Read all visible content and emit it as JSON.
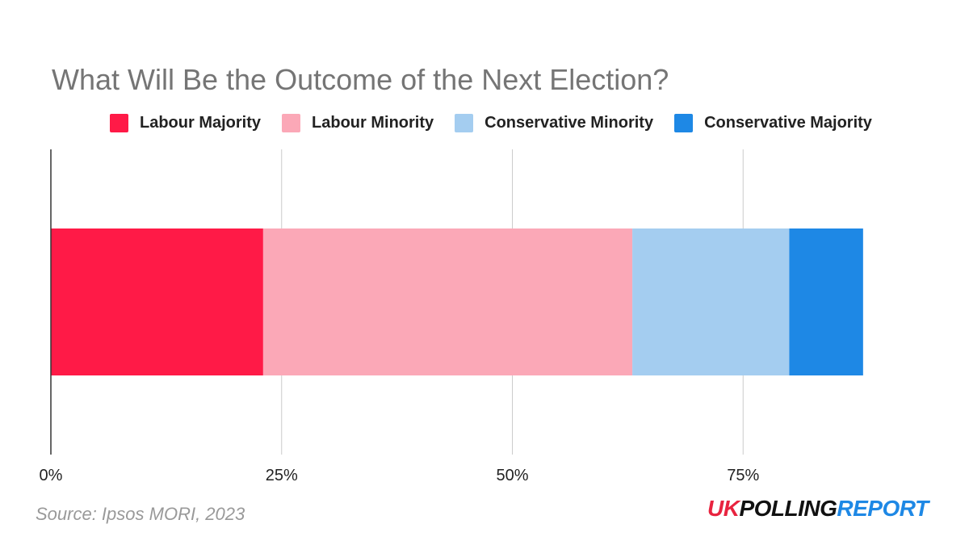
{
  "title": "What Will Be the Outcome of the Next Election?",
  "source": "Source: Ipsos MORI, 2023",
  "logo": {
    "part1": "UK",
    "part2": "POLLING",
    "part3": "REPORT"
  },
  "colors": {
    "labour_majority": "#ff1a47",
    "labour_minority": "#fba8b7",
    "conservative_minority": "#a4cdf0",
    "conservative_majority": "#1e88e5",
    "logo_red": "#e8233f",
    "logo_dark": "#111111",
    "logo_blue": "#1e88e5"
  },
  "chart_data": {
    "type": "bar",
    "orientation": "horizontal",
    "stacked": true,
    "title": "What Will Be the Outcome of the Next Election?",
    "categories": [
      ""
    ],
    "series": [
      {
        "name": "Labour Majority",
        "values": [
          23
        ],
        "color": "#ff1a47"
      },
      {
        "name": "Labour Minority",
        "values": [
          40
        ],
        "color": "#fba8b7"
      },
      {
        "name": "Conservative Minority",
        "values": [
          17
        ],
        "color": "#a4cdf0"
      },
      {
        "name": "Conservative Majority",
        "values": [
          8
        ],
        "color": "#1e88e5"
      }
    ],
    "xlim": [
      0,
      100
    ],
    "x_ticks": [
      "0%",
      "25%",
      "50%",
      "75%"
    ],
    "x_tick_values": [
      0,
      25,
      50,
      75
    ],
    "grid": true,
    "legend_position": "top"
  }
}
